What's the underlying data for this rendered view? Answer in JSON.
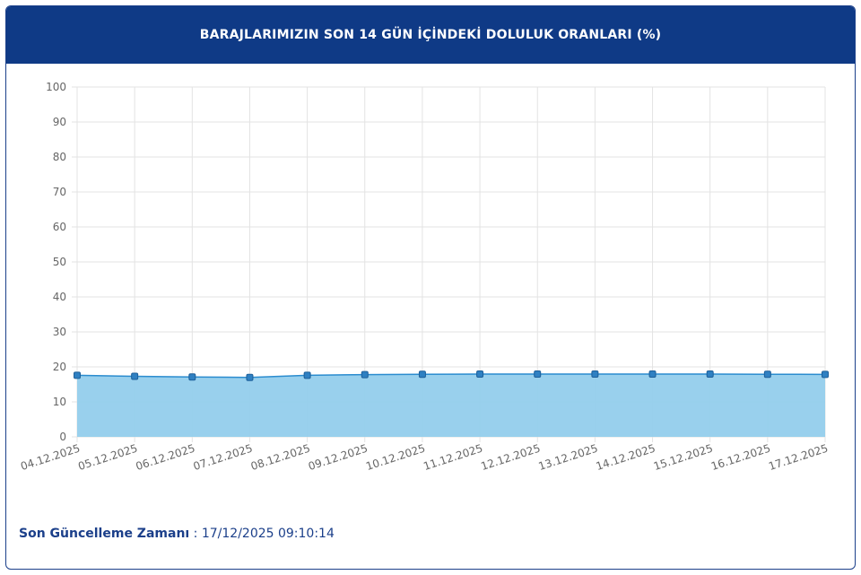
{
  "header": {
    "title": "BARAJLARIMIZIN SON 14 GÜN İÇİNDEKİ DOLULUK ORANLARI (%)"
  },
  "footer": {
    "label": "Son Güncelleme Zamanı",
    "separator": " : ",
    "value": "17/12/2025 09:10:14"
  },
  "colors": {
    "header_bg": "#0f3a86",
    "line": "#2b8ccf",
    "area_fill": "#93cdec",
    "marker_fill": "#2f80c2",
    "footer_text": "#1b3f8a"
  },
  "chart_data": {
    "type": "area",
    "title": "BARAJLARIMIZIN SON 14 GÜN İÇİNDEKİ DOLULUK ORANLARI (%)",
    "xlabel": "",
    "ylabel": "",
    "ylim": [
      0,
      100
    ],
    "yticks": [
      0,
      10,
      20,
      30,
      40,
      50,
      60,
      70,
      80,
      90,
      100
    ],
    "grid": true,
    "categories": [
      "04.12.2025",
      "05.12.2025",
      "06.12.2025",
      "07.12.2025",
      "08.12.2025",
      "09.12.2025",
      "10.12.2025",
      "11.12.2025",
      "12.12.2025",
      "13.12.2025",
      "14.12.2025",
      "15.12.2025",
      "16.12.2025",
      "17.12.2025"
    ],
    "values": [
      17.6,
      17.3,
      17.1,
      17.0,
      17.6,
      17.8,
      17.9,
      17.95,
      17.95,
      17.95,
      17.95,
      17.95,
      17.9,
      17.85
    ]
  }
}
